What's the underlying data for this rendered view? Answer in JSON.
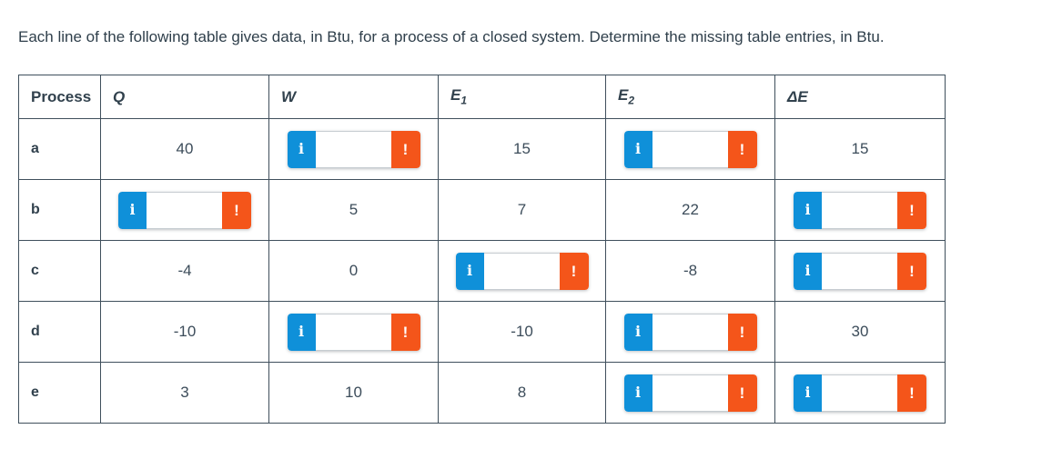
{
  "title": "Each line of the following table gives data, in Btu, for a process of a closed system. Determine the missing table entries, in Btu.",
  "units": "Btu",
  "input_widget": {
    "info_label": "i",
    "alert_label": "!",
    "value": "",
    "placeholder": ""
  },
  "colors": {
    "info_button_blue": "#0f90d9",
    "alert_button_orange": "#f4551a",
    "table_border": "#3f4f5c",
    "text": "#3c4c5a"
  },
  "table": {
    "headers": [
      {
        "id": "process",
        "label": "Process",
        "italic": false,
        "sub": ""
      },
      {
        "id": "q",
        "label": "Q",
        "italic": true,
        "sub": ""
      },
      {
        "id": "w",
        "label": "W",
        "italic": true,
        "sub": ""
      },
      {
        "id": "e1",
        "label": "E",
        "italic": true,
        "sub": "1"
      },
      {
        "id": "e2",
        "label": "E",
        "italic": true,
        "sub": "2"
      },
      {
        "id": "de",
        "label": "ΔE",
        "italic": true,
        "sub": ""
      }
    ],
    "rows": [
      {
        "process": "a",
        "cells": [
          {
            "type": "value",
            "value": "40"
          },
          {
            "type": "input",
            "value": ""
          },
          {
            "type": "value",
            "value": "15"
          },
          {
            "type": "input",
            "value": ""
          },
          {
            "type": "value",
            "value": "15"
          }
        ]
      },
      {
        "process": "b",
        "cells": [
          {
            "type": "input",
            "value": ""
          },
          {
            "type": "value",
            "value": "5"
          },
          {
            "type": "value",
            "value": "7"
          },
          {
            "type": "value",
            "value": "22"
          },
          {
            "type": "input",
            "value": ""
          }
        ]
      },
      {
        "process": "c",
        "cells": [
          {
            "type": "value",
            "value": "-4"
          },
          {
            "type": "value",
            "value": "0"
          },
          {
            "type": "input",
            "value": ""
          },
          {
            "type": "value",
            "value": "-8"
          },
          {
            "type": "input",
            "value": ""
          }
        ]
      },
      {
        "process": "d",
        "cells": [
          {
            "type": "value",
            "value": "-10"
          },
          {
            "type": "input",
            "value": ""
          },
          {
            "type": "value",
            "value": "-10"
          },
          {
            "type": "input",
            "value": ""
          },
          {
            "type": "value",
            "value": "30"
          }
        ]
      },
      {
        "process": "e",
        "cells": [
          {
            "type": "value",
            "value": "3"
          },
          {
            "type": "value",
            "value": "10"
          },
          {
            "type": "value",
            "value": "8"
          },
          {
            "type": "input",
            "value": ""
          },
          {
            "type": "input",
            "value": ""
          }
        ]
      }
    ]
  }
}
